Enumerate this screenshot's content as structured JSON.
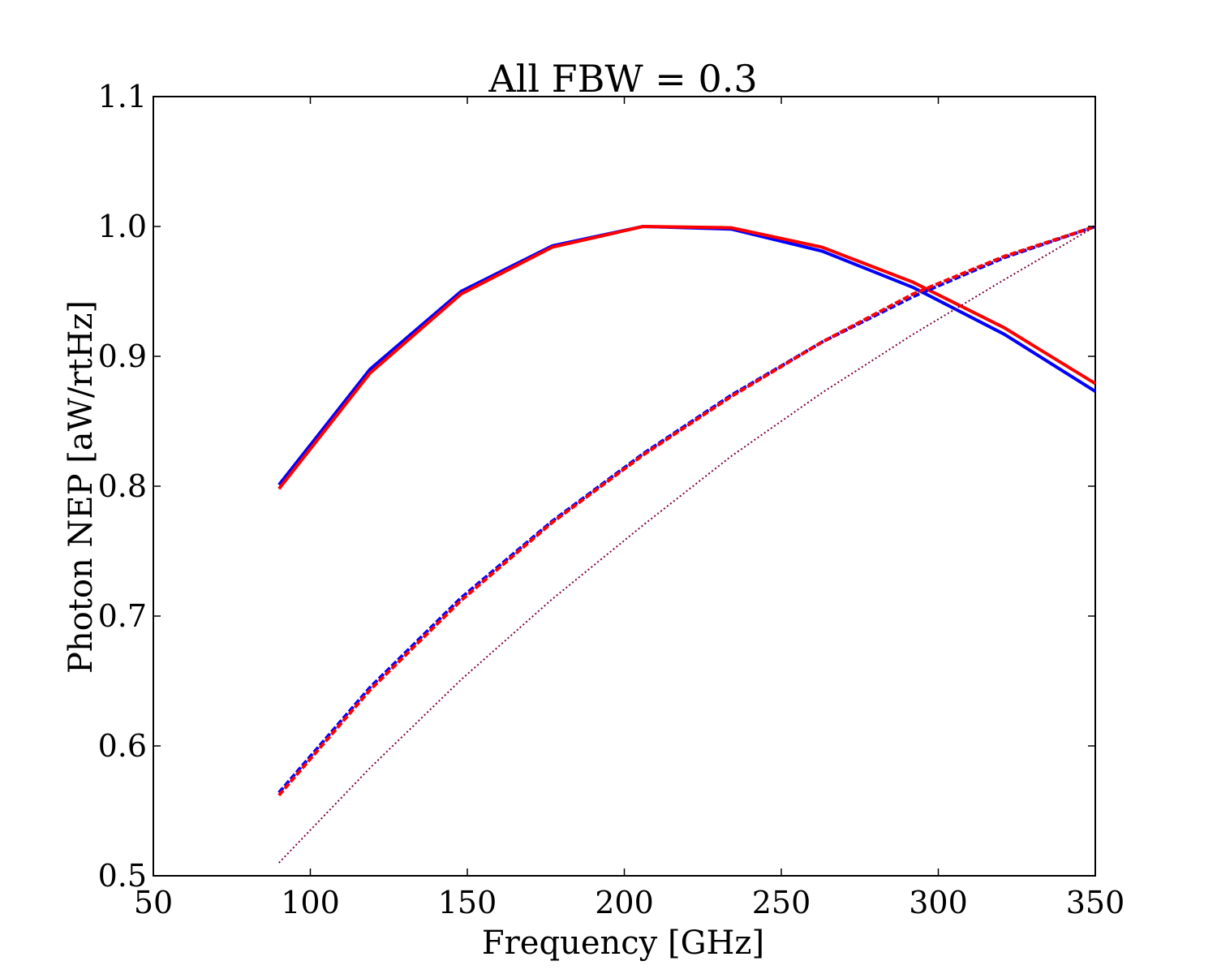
{
  "chart_data": {
    "type": "line",
    "title": "All FBW = 0.3",
    "xlabel": "Frequency [GHz]",
    "ylabel": "Photon NEP [aW/rtHz]",
    "xlim": [
      50,
      350
    ],
    "ylim": [
      0.5,
      1.1
    ],
    "xticks": [
      50,
      100,
      150,
      200,
      250,
      300,
      350
    ],
    "yticks": [
      0.5,
      0.6,
      0.7,
      0.8,
      0.9,
      1.0,
      1.1
    ],
    "xtick_labels": [
      "50",
      "100",
      "150",
      "200",
      "250",
      "300",
      "350"
    ],
    "ytick_labels": [
      "0.5",
      "0.6",
      "0.7",
      "0.8",
      "0.9",
      "1.0",
      "1.1"
    ],
    "grid": false,
    "legend": "none",
    "x": [
      90,
      119,
      148,
      177,
      206,
      234,
      263,
      292,
      321,
      350
    ],
    "series": [
      {
        "color": "#0000ff",
        "linestyle": "solid",
        "values": [
          0.801,
          0.89,
          0.95,
          0.985,
          1.0,
          0.998,
          0.981,
          0.953,
          0.917,
          0.873
        ]
      },
      {
        "color": "#ff0000",
        "linestyle": "solid",
        "values": [
          0.798,
          0.887,
          0.948,
          0.984,
          1.0,
          0.999,
          0.984,
          0.957,
          0.922,
          0.879
        ]
      },
      {
        "color": "#0000ff",
        "linestyle": "dashed",
        "values": [
          0.564,
          0.645,
          0.714,
          0.773,
          0.825,
          0.87,
          0.911,
          0.946,
          0.976,
          1.0
        ]
      },
      {
        "color": "#ff0000",
        "linestyle": "dashed",
        "values": [
          0.562,
          0.643,
          0.712,
          0.772,
          0.824,
          0.869,
          0.911,
          0.948,
          0.977,
          1.0
        ]
      },
      {
        "color": "#800040",
        "linestyle": "dotted",
        "values": [
          0.51,
          0.583,
          0.651,
          0.713,
          0.77,
          0.823,
          0.872,
          0.917,
          0.959,
          1.0
        ]
      }
    ]
  }
}
